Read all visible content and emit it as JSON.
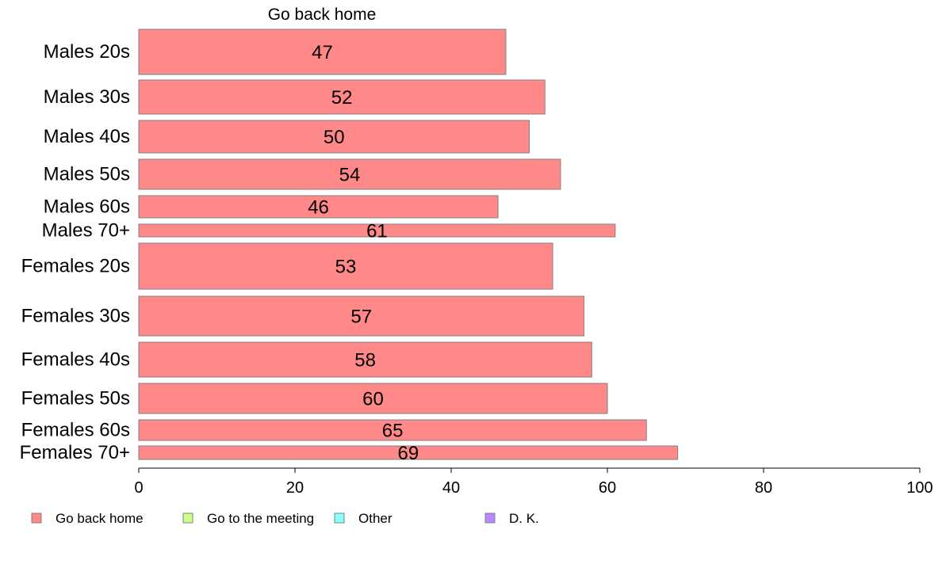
{
  "chart_data": {
    "type": "bar",
    "orientation": "horizontal",
    "title": "Go back home",
    "categories": [
      "Males 20s",
      "Males 30s",
      "Males 40s",
      "Males 50s",
      "Males 60s",
      "Males 70+",
      "Females 20s",
      "Females 30s",
      "Females 40s",
      "Females 50s",
      "Females 60s",
      "Females 70+"
    ],
    "series": [
      {
        "name": "Go back home",
        "color": "#ff8888",
        "values": [
          47,
          52,
          50,
          54,
          46,
          61,
          53,
          57,
          58,
          60,
          65,
          69
        ]
      }
    ],
    "bar_value_labels": [
      "47",
      "52",
      "50",
      "54",
      "46",
      "61",
      "53",
      "57",
      "58",
      "60",
      "65",
      "69"
    ],
    "xlim": [
      0,
      100
    ],
    "x_ticks": [
      0,
      20,
      40,
      60,
      80,
      100
    ],
    "grid": false,
    "legend": {
      "placement": "bottom-left",
      "items": [
        {
          "label": "Go back home",
          "color": "#ff8888"
        },
        {
          "label": "Go to the meeting",
          "color": "#ccff88"
        },
        {
          "label": "Other",
          "color": "#88ffff"
        },
        {
          "label": "D. K.",
          "color": "#bb88ff"
        }
      ]
    }
  }
}
